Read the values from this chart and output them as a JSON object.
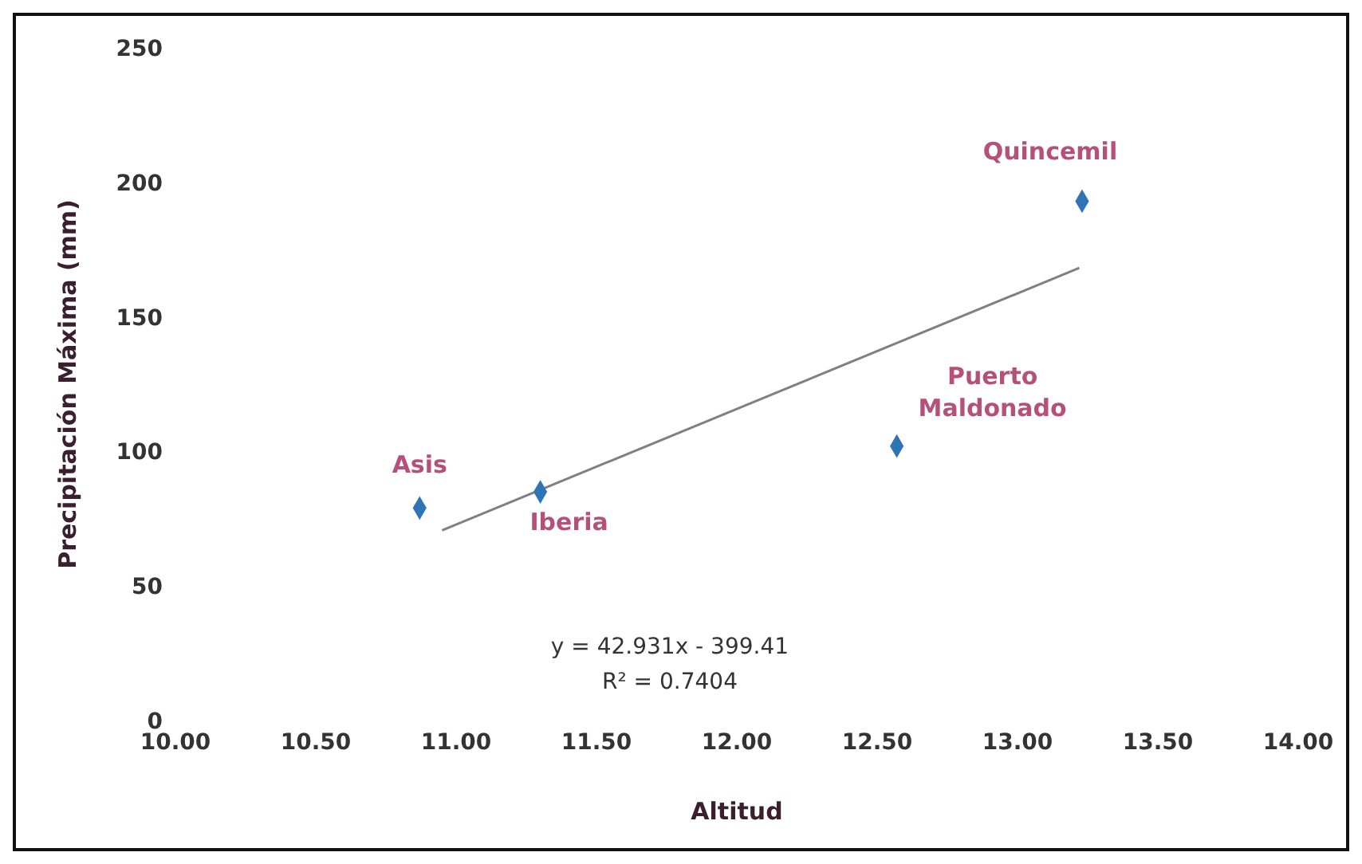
{
  "chart_data": {
    "type": "scatter",
    "xlabel": "Altitud",
    "ylabel": "Precipitación Máxima (mm)",
    "x": [
      10.87,
      11.3,
      12.57,
      13.23
    ],
    "series": [
      {
        "color": "#2e75b6",
        "values": [
          79,
          85,
          102,
          193
        ],
        "marker": "diamond"
      },
      {
        "type": "line",
        "color": "#808080",
        "x": [
          10.95,
          13.22
        ],
        "values": [
          70.7,
          168.2
        ],
        "marker": "none"
      }
    ],
    "xlim": [
      10,
      14
    ],
    "xticks": [
      {
        "value": 10,
        "label": "10.00"
      },
      {
        "value": 10.5,
        "label": "10.50"
      },
      {
        "value": 11,
        "label": "11.00"
      },
      {
        "value": 11.5,
        "label": "11.50"
      },
      {
        "value": 12,
        "label": "12.00"
      },
      {
        "value": 12.5,
        "label": "12.50"
      },
      {
        "value": 13,
        "label": "13.00"
      },
      {
        "value": 13.5,
        "label": "13.50"
      },
      {
        "value": 14,
        "label": "14.00"
      }
    ],
    "ylim": [
      0,
      250
    ],
    "yticks": [
      0,
      50,
      100,
      150,
      200,
      250
    ],
    "annotations": [
      {
        "text": "Asis",
        "x": 10.87,
        "y": 79
      },
      {
        "text": "Iberia",
        "x": 11.3,
        "y": 85
      },
      {
        "text": "Puerto Maldonado",
        "x": 12.57,
        "y": 102
      },
      {
        "text": "Quincemil",
        "x": 13.23,
        "y": 193
      },
      "y = 42.931x - 399.41",
      "R² = 0.7404"
    ]
  }
}
